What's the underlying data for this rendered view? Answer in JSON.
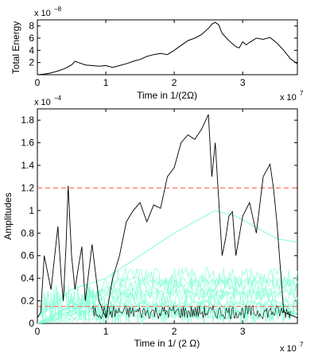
{
  "chart_data": [
    {
      "type": "line",
      "xlabel": "Time in 1/(2Ω)",
      "ylabel": "Total Energy",
      "x_exponent_base": "x 10",
      "x_exponent_power": "7",
      "y_exponent_base": "x 10",
      "y_exponent_power": "−8",
      "xlim": [
        0,
        3.8
      ],
      "ylim": [
        0,
        9
      ],
      "xticks": [
        "0",
        "1",
        "2",
        "3"
      ],
      "yticks": [
        "2",
        "4",
        "6",
        "8"
      ],
      "colors": {
        "line": "#000000"
      },
      "series": [
        {
          "x": [
            0,
            0.1,
            0.2,
            0.3,
            0.4,
            0.5,
            0.55,
            0.6,
            0.7,
            0.8,
            0.9,
            1.0,
            1.1,
            1.2,
            1.3,
            1.4,
            1.5,
            1.6,
            1.7,
            1.8,
            1.9,
            2.0,
            2.1,
            2.2,
            2.3,
            2.4,
            2.5,
            2.55,
            2.6,
            2.65,
            2.7,
            2.8,
            2.9,
            2.95,
            3.0,
            3.05,
            3.1,
            3.2,
            3.3,
            3.4,
            3.5,
            3.6,
            3.7,
            3.8
          ],
          "y": [
            0,
            0.1,
            0.3,
            0.6,
            1.0,
            1.6,
            2.2,
            2.0,
            1.6,
            1.5,
            1.4,
            1.5,
            1.2,
            1.5,
            1.8,
            2.2,
            2.5,
            3.0,
            3.3,
            3.5,
            3.3,
            4.0,
            4.8,
            5.6,
            6.0,
            6.6,
            7.6,
            8.3,
            8.6,
            8.2,
            6.8,
            5.6,
            4.6,
            4.4,
            5.4,
            4.9,
            5.3,
            6.0,
            5.8,
            6.1,
            5.2,
            4.0,
            2.6,
            1.8
          ]
        }
      ]
    },
    {
      "type": "line",
      "xlabel": "Time in 1/ (2 Ω)",
      "ylabel": "Amplitudes",
      "x_exponent_base": "x 10",
      "x_exponent_power": "7",
      "y_exponent_base": "x 10",
      "y_exponent_power": "−4",
      "xlim": [
        0,
        3.8
      ],
      "ylim": [
        0,
        1.9
      ],
      "xticks": [
        "0",
        "1",
        "2",
        "3"
      ],
      "yticks": [
        "0",
        "0.2",
        "0.4",
        "0.6",
        "0.8",
        "1",
        "1.2",
        "1.4",
        "1.6",
        "1.8"
      ],
      "colors": {
        "black": "#000000",
        "cyan": "#7fffd4",
        "threshold": "#ff6347"
      },
      "thresholds": [
        1.2,
        0.15
      ],
      "series": [
        {
          "x": [
            0,
            0.05,
            0.1,
            0.2,
            0.3,
            0.35,
            0.38,
            0.42,
            0.45,
            0.5,
            0.55,
            0.6,
            0.65,
            0.7,
            0.75,
            0.8,
            0.9,
            1.0,
            1.1,
            1.2,
            1.3,
            1.4,
            1.5,
            1.6,
            1.7,
            1.8,
            1.9,
            2.0,
            2.1,
            2.2,
            2.3,
            2.4,
            2.5,
            2.55,
            2.6,
            2.65,
            2.7,
            2.75,
            2.8,
            2.85,
            2.9,
            3.0,
            3.1,
            3.2,
            3.3,
            3.4,
            3.45,
            3.5,
            3.6,
            3.8
          ],
          "y": [
            0.05,
            0.1,
            0.6,
            0.3,
            0.86,
            0.4,
            0.2,
            0.7,
            1.22,
            0.6,
            0.3,
            0.5,
            0.68,
            0.2,
            0.45,
            0.7,
            0.2,
            0.05,
            0.4,
            0.6,
            0.9,
            1.0,
            1.07,
            0.9,
            1.05,
            1.02,
            1.3,
            1.38,
            1.6,
            1.67,
            1.63,
            1.72,
            1.85,
            1.3,
            1.6,
            1.1,
            0.6,
            0.75,
            0.95,
            0.99,
            0.6,
            0.95,
            1.07,
            0.8,
            1.3,
            1.41,
            1.2,
            0.9,
            0.1,
            0.05
          ]
        },
        {
          "x": [
            0,
            0.5,
            1.0,
            1.5,
            2.0,
            2.3,
            2.6,
            2.9,
            3.2,
            3.5,
            3.8
          ],
          "y": [
            0.05,
            0.3,
            0.4,
            0.6,
            0.8,
            0.9,
            1.0,
            0.95,
            0.85,
            0.75,
            0.72
          ]
        }
      ]
    }
  ]
}
